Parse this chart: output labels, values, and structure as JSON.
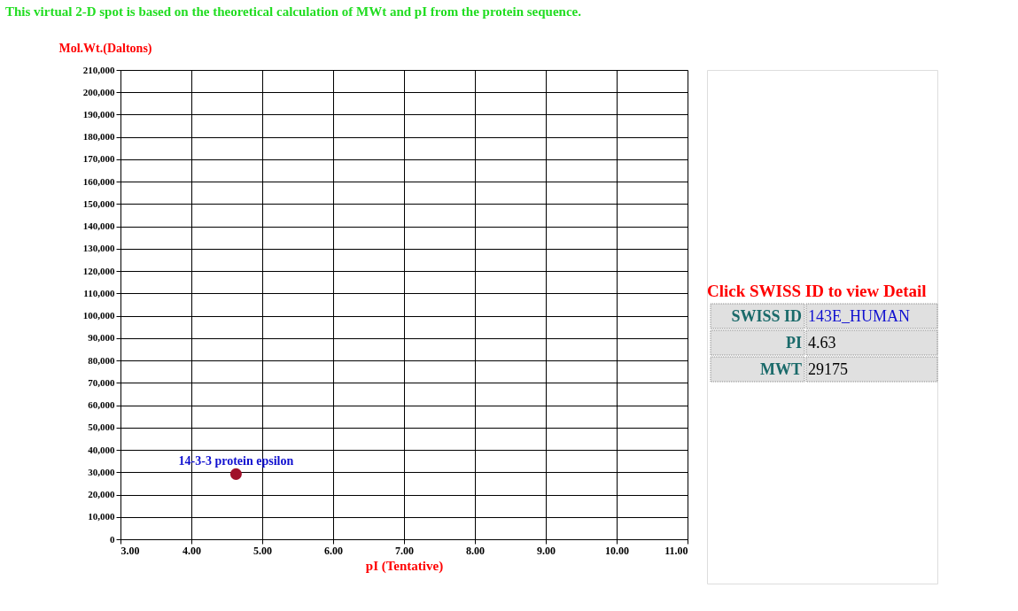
{
  "chart_data": [
    {
      "type": "scatter",
      "title": "This virtual 2-D spot is based on the theoretical calculation of MWt and pI from the protein sequence.",
      "xlabel": "pI (Tentative)",
      "ylabel": "Mol.Wt.(Daltons)",
      "grid": true,
      "marker": "circle",
      "x": [
        4.63
      ],
      "series": [
        {
          "color": "#a0102a",
          "values": [
            29175
          ]
        }
      ],
      "annotations": [
        {
          "text": "14-3-3 protein epsilon",
          "x": 4.63,
          "y": 29175
        }
      ],
      "xlim": [
        3,
        11
      ],
      "xticks": [
        {
          "value": 3,
          "label": "3.00"
        },
        {
          "value": 4,
          "label": "4.00"
        },
        {
          "value": 5,
          "label": "5.00"
        },
        {
          "value": 6,
          "label": "6.00"
        },
        {
          "value": 7,
          "label": "7.00"
        },
        {
          "value": 8,
          "label": "8.00"
        },
        {
          "value": 9,
          "label": "9.00"
        },
        {
          "value": 10,
          "label": "10.00"
        },
        {
          "value": 11,
          "label": "11.00"
        }
      ],
      "ylim": [
        0,
        210000
      ],
      "yticks": [
        0,
        {
          "value": 10000,
          "label": "10,000"
        },
        {
          "value": 20000,
          "label": "20,000"
        },
        {
          "value": 30000,
          "label": "30,000"
        },
        {
          "value": 40000,
          "label": "40,000"
        },
        {
          "value": 50000,
          "label": "50,000"
        },
        {
          "value": 60000,
          "label": "60,000"
        },
        {
          "value": 70000,
          "label": "70,000"
        },
        {
          "value": 80000,
          "label": "80,000"
        },
        {
          "value": 90000,
          "label": "90,000"
        },
        {
          "value": 100000,
          "label": "100,000"
        },
        {
          "value": 110000,
          "label": "110,000"
        },
        {
          "value": 120000,
          "label": "120,000"
        },
        {
          "value": 130000,
          "label": "130,000"
        },
        {
          "value": 140000,
          "label": "140,000"
        },
        {
          "value": 150000,
          "label": "150,000"
        },
        {
          "value": 160000,
          "label": "160,000"
        },
        {
          "value": 170000,
          "label": "170,000"
        },
        {
          "value": 180000,
          "label": "180,000"
        },
        {
          "value": 190000,
          "label": "190,000"
        },
        {
          "value": 200000,
          "label": "200,000"
        },
        {
          "value": 210000,
          "label": "210,000"
        }
      ]
    },
    {
      "type": "other",
      "title": "Click SWISS ID to view Detail",
      "annotations": [
        "SWISS ID",
        "143E_HUMAN",
        "PI",
        "4.63",
        "MWT",
        "29175"
      ]
    }
  ]
}
